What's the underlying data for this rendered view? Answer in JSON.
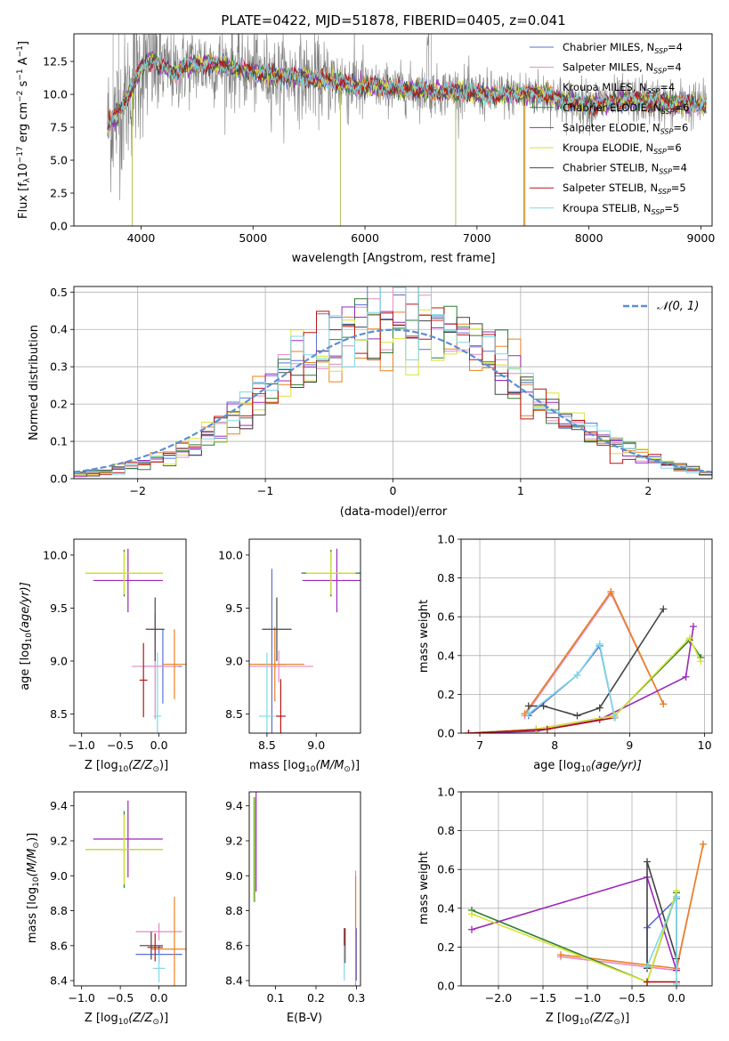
{
  "figure": {
    "title": "PLATE=0422, MJD=51878, FIBERID=0405, z=0.041"
  },
  "series": [
    {
      "name": "Chabrier MILES, N$_{SSP}$=4",
      "label_main": "Chabrier MILES, N",
      "label_sub": "SSP",
      "label_tail": "=4",
      "color": "#5a6fd6"
    },
    {
      "name": "Salpeter MILES, N$_{SSP}$=4",
      "label_main": "Salpeter MILES, N",
      "label_sub": "SSP",
      "label_tail": "=4",
      "color": "#e78ac3"
    },
    {
      "name": "Kroupa MILES, N$_{SSP}$=4",
      "label_main": "Kroupa MILES, N",
      "label_sub": "SSP",
      "label_tail": "=4",
      "color": "#e9821f"
    },
    {
      "name": "Chabrier ELODIE, N$_{SSP}$=6",
      "label_main": "Chabrier ELODIE, N",
      "label_sub": "SSP",
      "label_tail": "=6",
      "color": "#2e7d32"
    },
    {
      "name": "Salpeter ELODIE, N$_{SSP}$=6",
      "label_main": "Salpeter ELODIE, N",
      "label_sub": "SSP",
      "label_tail": "=6",
      "color": "#9a2ab8"
    },
    {
      "name": "Kroupa ELODIE, N$_{SSP}$=6",
      "label_main": "Kroupa ELODIE, N",
      "label_sub": "SSP",
      "label_tail": "=6",
      "color": "#d7e336"
    },
    {
      "name": "Chabrier STELIB, N$_{SSP}$=4",
      "label_main": "Chabrier STELIB, N",
      "label_sub": "SSP",
      "label_tail": "=4",
      "color": "#444444"
    },
    {
      "name": "Salpeter STELIB, N$_{SSP}$=5",
      "label_main": "Salpeter STELIB, N",
      "label_sub": "SSP",
      "label_tail": "=5",
      "color": "#b81414"
    },
    {
      "name": "Kroupa STELIB, N$_{SSP}$=5",
      "label_main": "Kroupa STELIB, N",
      "label_sub": "SSP",
      "label_tail": "=5",
      "color": "#7fd8e6"
    }
  ],
  "chart_data": [
    {
      "id": "spectrum",
      "type": "line",
      "title": "PLATE=0422, MJD=51878, FIBERID=0405, z=0.041",
      "xlabel": "wavelength [Angstrom, rest frame]",
      "ylabel": "Flux [f$_\\lambda$10$^{-17}$ erg cm$^{-2}$ s$^{-1}$ A$^{-1}$]",
      "xlim": [
        3400,
        9100
      ],
      "ylim": [
        0,
        14.6
      ],
      "xticks": [
        4000,
        5000,
        6000,
        7000,
        8000,
        9000
      ],
      "yticks": [
        0.0,
        2.5,
        5.0,
        7.5,
        10.0,
        12.5
      ],
      "legend": "upper right",
      "grid": false,
      "data_color": "#808080",
      "continuum_points": [
        [
          3700,
          7.6
        ],
        [
          3800,
          8.6
        ],
        [
          3900,
          10.2
        ],
        [
          4000,
          12.0
        ],
        [
          4100,
          12.6
        ],
        [
          4200,
          12.1
        ],
        [
          4300,
          11.6
        ],
        [
          4400,
          12.2
        ],
        [
          4600,
          12.3
        ],
        [
          4800,
          12.1
        ],
        [
          5000,
          11.7
        ],
        [
          5200,
          11.4
        ],
        [
          5400,
          11.3
        ],
        [
          5600,
          11.1
        ],
        [
          5800,
          10.9
        ],
        [
          6000,
          10.6
        ],
        [
          6200,
          10.5
        ],
        [
          6400,
          10.4
        ],
        [
          6600,
          10.2
        ],
        [
          6800,
          10.3
        ],
        [
          7000,
          10.0
        ],
        [
          7200,
          9.9
        ],
        [
          7400,
          10.1
        ],
        [
          7600,
          10.0
        ],
        [
          7800,
          9.5
        ],
        [
          8000,
          9.2
        ],
        [
          8200,
          9.4
        ],
        [
          8400,
          9.6
        ],
        [
          8600,
          9.4
        ],
        [
          8800,
          9.3
        ],
        [
          9000,
          9.2
        ]
      ]
    },
    {
      "id": "residuals",
      "type": "histogram",
      "xlabel": "(data-model)/error",
      "ylabel": "Normed distribution",
      "xlim": [
        -2.5,
        2.5
      ],
      "ylim": [
        0,
        0.515
      ],
      "xticks": [
        -2,
        -1,
        0,
        1,
        2
      ],
      "yticks": [
        0.0,
        0.1,
        0.2,
        0.3,
        0.4,
        0.5
      ],
      "grid": true,
      "bin_width": 0.1,
      "reference_curve": {
        "name": "$\\mathcal{N}(0,1)$",
        "label": "𝒩(0, 1)",
        "color": "#5b8ed6"
      },
      "legend": "upper right"
    },
    {
      "id": "age_vs_Z",
      "type": "errorbar",
      "xlabel": "Z [log$_{10}$(Z/Z$_\\odot$)]",
      "ylabel": "age  [log$_{10}$(age/yr)]",
      "xlim": [
        -1.1,
        0.35
      ],
      "ylim": [
        8.32,
        10.15
      ],
      "xticks": [
        -1.0,
        -0.5,
        0.0
      ],
      "yticks": [
        8.5,
        9.0,
        9.5,
        10.0
      ],
      "points": [
        {
          "series": 0,
          "x": 0.05,
          "y": 8.95,
          "xerr": 0.25,
          "yerr": 0.35
        },
        {
          "series": 1,
          "x": -0.05,
          "y": 8.95,
          "xerr": 0.3,
          "yerr": 0.5
        },
        {
          "series": 2,
          "x": 0.2,
          "y": 8.97,
          "xerr": 0.15,
          "yerr": 0.33
        },
        {
          "series": 3,
          "x": -0.45,
          "y": 9.83,
          "xerr": 0.5,
          "yerr": 0.22
        },
        {
          "series": 4,
          "x": -0.4,
          "y": 9.76,
          "xerr": 0.45,
          "yerr": 0.3
        },
        {
          "series": 5,
          "x": -0.45,
          "y": 9.83,
          "xerr": 0.5,
          "yerr": 0.2
        },
        {
          "series": 6,
          "x": -0.05,
          "y": 9.3,
          "xerr": 0.12,
          "yerr": 0.3
        },
        {
          "series": 7,
          "x": -0.2,
          "y": 8.82,
          "xerr": 0.05,
          "yerr": 0.35
        },
        {
          "series": 8,
          "x": -0.02,
          "y": 8.48,
          "xerr": 0.05,
          "yerr": 0.6
        }
      ]
    },
    {
      "id": "age_vs_mass",
      "type": "errorbar",
      "xlabel": "mass [log$_{10}$(M/M$_\\odot$)]",
      "ylabel": "",
      "xlim": [
        8.32,
        9.45
      ],
      "ylim": [
        8.32,
        10.15
      ],
      "xticks": [
        8.5,
        9.0
      ],
      "yticks": [
        8.5,
        9.0,
        9.5,
        10.0
      ],
      "points": [
        {
          "series": 0,
          "x": 8.55,
          "y": 8.97,
          "xerr": 0.15,
          "yerr": 0.9
        },
        {
          "series": 1,
          "x": 8.62,
          "y": 8.95,
          "xerr": 0.35,
          "yerr": 0.15
        },
        {
          "series": 2,
          "x": 8.58,
          "y": 8.97,
          "xerr": 0.3,
          "yerr": 0.35
        },
        {
          "series": 3,
          "x": 9.15,
          "y": 9.83,
          "xerr": 0.3,
          "yerr": 0.22
        },
        {
          "series": 4,
          "x": 9.21,
          "y": 9.76,
          "xerr": 0.35,
          "yerr": 0.3
        },
        {
          "series": 5,
          "x": 9.15,
          "y": 9.83,
          "xerr": 0.25,
          "yerr": 0.2
        },
        {
          "series": 6,
          "x": 8.6,
          "y": 9.3,
          "xerr": 0.15,
          "yerr": 0.3
        },
        {
          "series": 7,
          "x": 8.64,
          "y": 8.48,
          "xerr": 0.05,
          "yerr": 0.35
        },
        {
          "series": 8,
          "x": 8.5,
          "y": 8.48,
          "xerr": 0.08,
          "yerr": 0.6
        }
      ]
    },
    {
      "id": "mass_weight_vs_age",
      "type": "line",
      "xlabel": "age  [log$_{10}$(age/yr)]",
      "ylabel": "mass weight",
      "xlim": [
        6.75,
        10.1
      ],
      "ylim": [
        0.0,
        1.0
      ],
      "xticks": [
        7,
        8,
        9,
        10
      ],
      "yticks": [
        0.0,
        0.2,
        0.4,
        0.6,
        0.8,
        1.0
      ],
      "grid": true,
      "lines": [
        {
          "series": 0,
          "x": [
            7.65,
            8.3,
            8.6,
            8.8
          ],
          "y": [
            0.09,
            0.3,
            0.45,
            0.08
          ]
        },
        {
          "series": 1,
          "x": [
            7.6,
            8.75,
            9.45
          ],
          "y": [
            0.09,
            0.72,
            0.15
          ]
        },
        {
          "series": 2,
          "x": [
            7.6,
            8.75,
            9.45
          ],
          "y": [
            0.1,
            0.73,
            0.15
          ]
        },
        {
          "series": 3,
          "x": [
            6.85,
            7.75,
            8.8,
            9.8,
            9.95
          ],
          "y": [
            0.0,
            0.02,
            0.09,
            0.48,
            0.39
          ]
        },
        {
          "series": 4,
          "x": [
            6.85,
            7.75,
            8.6,
            9.75,
            9.85
          ],
          "y": [
            0.0,
            0.01,
            0.07,
            0.29,
            0.55
          ]
        },
        {
          "series": 5,
          "x": [
            6.85,
            7.75,
            8.8,
            9.8,
            9.95
          ],
          "y": [
            0.0,
            0.02,
            0.09,
            0.49,
            0.37
          ]
        },
        {
          "series": 6,
          "x": [
            7.65,
            7.85,
            8.3,
            8.6,
            9.45
          ],
          "y": [
            0.14,
            0.14,
            0.09,
            0.13,
            0.64
          ]
        },
        {
          "series": 7,
          "x": [
            6.85,
            7.9,
            8.8
          ],
          "y": [
            0.0,
            0.02,
            0.08
          ]
        },
        {
          "series": 8,
          "x": [
            7.65,
            8.3,
            8.6,
            8.8
          ],
          "y": [
            0.1,
            0.3,
            0.46,
            0.08
          ]
        }
      ]
    },
    {
      "id": "mass_vs_Z",
      "type": "errorbar",
      "xlabel": "Z [log$_{10}$(Z/Z$_\\odot$)]",
      "ylabel": "mass [log$_{10}$(M/M$_\\odot$)]",
      "xlim": [
        -1.1,
        0.35
      ],
      "ylim": [
        8.37,
        9.48
      ],
      "xticks": [
        -1.0,
        -0.5,
        0.0
      ],
      "yticks": [
        8.4,
        8.6,
        8.8,
        9.0,
        9.2,
        9.4
      ],
      "points": [
        {
          "series": 0,
          "x": 0.0,
          "y": 8.55,
          "xerr": 0.3,
          "yerr": 0.05
        },
        {
          "series": 1,
          "x": 0.0,
          "y": 8.68,
          "xerr": 0.3,
          "yerr": 0.05
        },
        {
          "series": 2,
          "x": 0.2,
          "y": 8.58,
          "xerr": 0.3,
          "yerr": 0.3
        },
        {
          "series": 3,
          "x": -0.45,
          "y": 9.15,
          "xerr": 0.5,
          "yerr": 0.22
        },
        {
          "series": 4,
          "x": -0.4,
          "y": 9.21,
          "xerr": 0.45,
          "yerr": 0.22
        },
        {
          "series": 5,
          "x": -0.45,
          "y": 9.15,
          "xerr": 0.5,
          "yerr": 0.2
        },
        {
          "series": 6,
          "x": -0.1,
          "y": 8.6,
          "xerr": 0.15,
          "yerr": 0.08
        },
        {
          "series": 7,
          "x": -0.05,
          "y": 8.59,
          "xerr": 0.1,
          "yerr": 0.08
        },
        {
          "series": 8,
          "x": 0.0,
          "y": 8.47,
          "xerr": 0.08,
          "yerr": 0.08
        }
      ]
    },
    {
      "id": "mass_vs_ebv",
      "type": "errorbar",
      "xlabel": "E(B-V)",
      "ylabel": "",
      "xlim": [
        0.035,
        0.31
      ],
      "ylim": [
        8.37,
        9.48
      ],
      "xticks": [
        0.1,
        0.2,
        0.3
      ],
      "yticks": [
        8.4,
        8.6,
        8.8,
        9.0,
        9.2,
        9.4
      ],
      "points": [
        {
          "series": 0,
          "x": 0.3,
          "y": 8.55,
          "xerr": 0.0,
          "yerr": 0.15
        },
        {
          "series": 1,
          "x": 0.298,
          "y": 8.68,
          "xerr": 0.0,
          "yerr": 0.35
        },
        {
          "series": 2,
          "x": 0.298,
          "y": 8.7,
          "xerr": 0.0,
          "yerr": 0.3
        },
        {
          "series": 3,
          "x": 0.048,
          "y": 9.15,
          "xerr": 0.0,
          "yerr": 0.3
        },
        {
          "series": 4,
          "x": 0.052,
          "y": 9.21,
          "xerr": 0.0,
          "yerr": 0.3
        },
        {
          "series": 5,
          "x": 0.046,
          "y": 9.15,
          "xerr": 0.0,
          "yerr": 0.3
        },
        {
          "series": 6,
          "x": 0.27,
          "y": 8.6,
          "xerr": 0.0,
          "yerr": 0.1
        },
        {
          "series": 7,
          "x": 0.272,
          "y": 8.6,
          "xerr": 0.0,
          "yerr": 0.1
        },
        {
          "series": 8,
          "x": 0.27,
          "y": 8.5,
          "xerr": 0.0,
          "yerr": 0.1
        }
      ]
    },
    {
      "id": "mass_weight_vs_Z",
      "type": "line",
      "xlabel": "Z [log$_{10}$(Z/Z$_\\odot$)]",
      "ylabel": "mass weight",
      "xlim": [
        -2.42,
        0.4
      ],
      "ylim": [
        0.0,
        1.0
      ],
      "xticks": [
        -2.0,
        -1.5,
        -1.0,
        -0.5,
        0.0
      ],
      "yticks": [
        0.0,
        0.2,
        0.4,
        0.6,
        0.8,
        1.0
      ],
      "grid": true,
      "lines": [
        {
          "series": 0,
          "x": [
            -0.33,
            -0.33,
            0.0,
            0.0
          ],
          "y": [
            0.09,
            0.3,
            0.45,
            0.08
          ]
        },
        {
          "series": 1,
          "x": [
            -1.3,
            0.0,
            0.3
          ],
          "y": [
            0.15,
            0.08,
            0.73
          ]
        },
        {
          "series": 2,
          "x": [
            -1.3,
            0.0,
            0.3
          ],
          "y": [
            0.16,
            0.09,
            0.73
          ]
        },
        {
          "series": 3,
          "x": [
            -2.3,
            -0.33,
            0.0
          ],
          "y": [
            0.39,
            0.02,
            0.48
          ]
        },
        {
          "series": 4,
          "x": [
            -2.3,
            -0.33,
            0.0
          ],
          "y": [
            0.29,
            0.56,
            0.08
          ]
        },
        {
          "series": 5,
          "x": [
            -2.3,
            -0.33,
            0.0
          ],
          "y": [
            0.37,
            0.02,
            0.49
          ]
        },
        {
          "series": 6,
          "x": [
            -0.33,
            -0.33,
            0.0
          ],
          "y": [
            0.09,
            0.64,
            0.14
          ]
        },
        {
          "series": 7,
          "x": [
            -0.33,
            0.0
          ],
          "y": [
            0.02,
            0.02
          ]
        },
        {
          "series": 8,
          "x": [
            -0.33,
            0.0,
            0.0
          ],
          "y": [
            0.1,
            0.46,
            0.01
          ]
        }
      ]
    }
  ],
  "labels": {
    "spectrum_ylabel": "Flux [f",
    "spectrum_ylabel_sub1": "λ",
    "spectrum_ylabel_mid1": "10",
    "spectrum_ylabel_sup1": "−17",
    "spectrum_ylabel_mid2": " erg cm",
    "spectrum_ylabel_sup2": "−2",
    "spectrum_ylabel_mid3": " s",
    "spectrum_ylabel_sup3": "−1",
    "spectrum_ylabel_mid4": " A",
    "spectrum_ylabel_sup4": "−1",
    "spectrum_ylabel_end": "]",
    "spectrum_xlabel": "wavelength [Angstrom, rest frame]",
    "hist_xlabel": "(data-model)/error",
    "hist_ylabel": "Normed distribution",
    "hist_legend": "𝒩(0, 1)",
    "age_axis": "age  [log",
    "age_axis_sub": "10",
    "age_axis_end": "(age/yr)]",
    "z_axis": "Z [log",
    "z_axis_sub": "10",
    "z_axis_mid": "(Z/Z",
    "z_axis_sub2": "⊙",
    "z_axis_end": ")]",
    "mass_axis": "mass [log",
    "mass_axis_sub": "10",
    "mass_axis_mid": "(M/M",
    "mass_axis_sub2": "⊙",
    "mass_axis_end": ")]",
    "mw_axis": "mass weight",
    "ebv_axis": "E(B-V)"
  }
}
